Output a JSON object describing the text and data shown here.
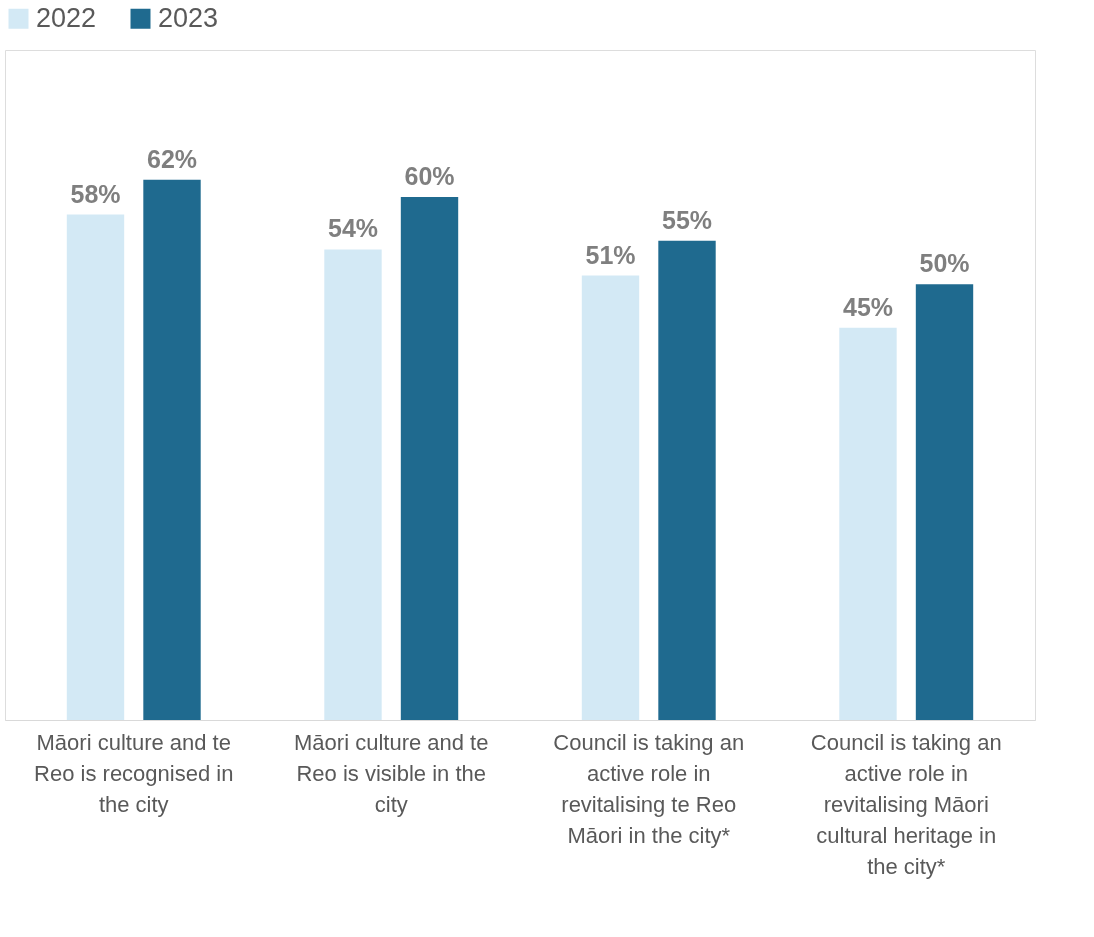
{
  "chart_data": {
    "type": "bar",
    "categories": [
      "Māori culture and te Reo is recognised in the city",
      "Māori culture and te Reo is visible in the city",
      "Council is taking an active role in revitalising te Reo Māori in the city*",
      "Council is taking an active role in revitalising Māori cultural heritage in the city*"
    ],
    "series": [
      {
        "name": "2022",
        "color": "#d3e9f5",
        "values": [
          58,
          54,
          51,
          45
        ],
        "value_labels": [
          "58%",
          "54%",
          "51%",
          "45%"
        ]
      },
      {
        "name": "2023",
        "color": "#1f6a8f",
        "values": [
          62,
          60,
          55,
          50
        ],
        "value_labels": [
          "62%",
          "60%",
          "55%",
          "50%"
        ]
      }
    ],
    "legend": "top",
    "grid": false
  }
}
